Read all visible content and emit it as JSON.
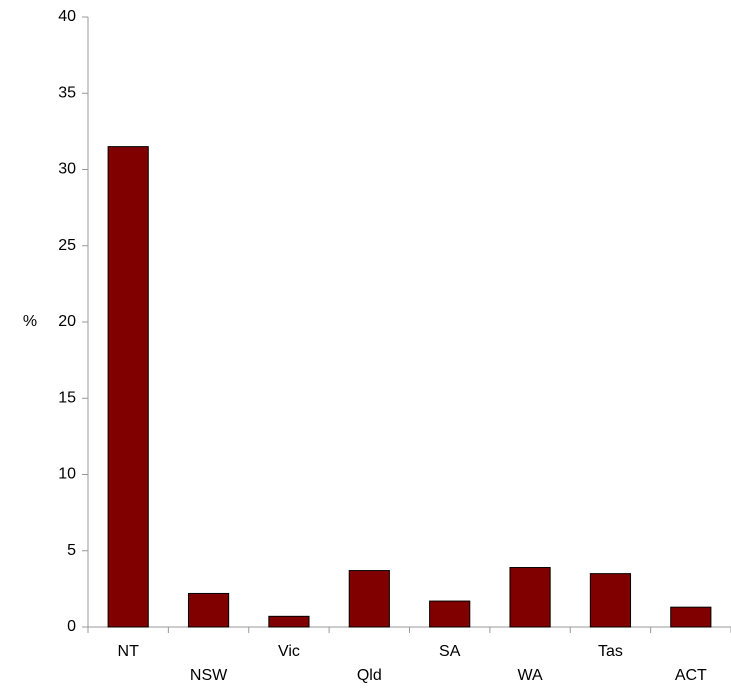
{
  "chart_data": {
    "type": "bar",
    "y_label": "%",
    "categories": [
      "NT",
      "NSW",
      "Vic",
      "Qld",
      "SA",
      "WA",
      "Tas",
      "ACT"
    ],
    "values": [
      31.5,
      2.2,
      0.7,
      3.7,
      1.7,
      3.9,
      3.5,
      1.3
    ],
    "color": "#800000",
    "ylim": [
      0,
      40
    ],
    "yticks": [
      0,
      5,
      10,
      15,
      20,
      25,
      30,
      35,
      40
    ],
    "grid": false
  }
}
